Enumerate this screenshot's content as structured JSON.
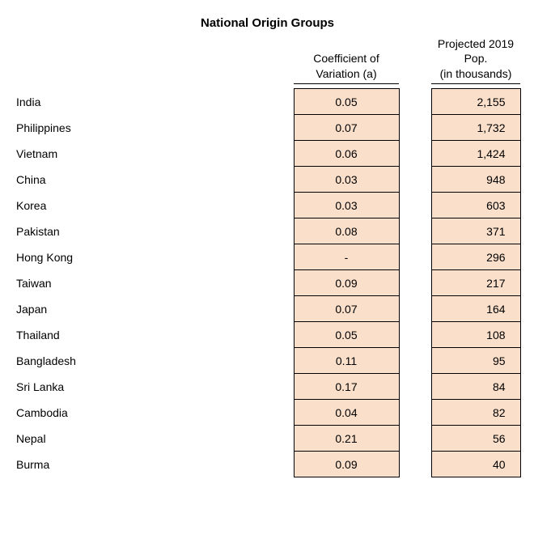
{
  "title": "National Origin Groups",
  "columns": {
    "cv": {
      "line1": "Coefficient of",
      "line2": "Variation (a)"
    },
    "proj": {
      "line1": "Projected 2019 Pop.",
      "line2": "(in thousands)"
    }
  },
  "rows": [
    {
      "label": "India",
      "cv": "0.05",
      "proj": "2,155"
    },
    {
      "label": "Philippines",
      "cv": "0.07",
      "proj": "1,732"
    },
    {
      "label": "Vietnam",
      "cv": "0.06",
      "proj": "1,424"
    },
    {
      "label": "China",
      "cv": "0.03",
      "proj": "948"
    },
    {
      "label": "Korea",
      "cv": "0.03",
      "proj": "603"
    },
    {
      "label": "Pakistan",
      "cv": "0.08",
      "proj": "371"
    },
    {
      "label": "Hong Kong",
      "cv": "-",
      "proj": "296"
    },
    {
      "label": "Taiwan",
      "cv": "0.09",
      "proj": "217"
    },
    {
      "label": "Japan",
      "cv": "0.07",
      "proj": "164"
    },
    {
      "label": "Thailand",
      "cv": "0.05",
      "proj": "108"
    },
    {
      "label": "Bangladesh",
      "cv": "0.11",
      "proj": "95"
    },
    {
      "label": "Sri Lanka",
      "cv": "0.17",
      "proj": "84"
    },
    {
      "label": "Cambodia",
      "cv": "0.04",
      "proj": "82"
    },
    {
      "label": "Nepal",
      "cv": "0.21",
      "proj": "56"
    },
    {
      "label": "Burma",
      "cv": "0.09",
      "proj": "40"
    }
  ],
  "style": {
    "cell_bg": "#fadfca",
    "cell_border": "#000000",
    "font": "Arial"
  }
}
